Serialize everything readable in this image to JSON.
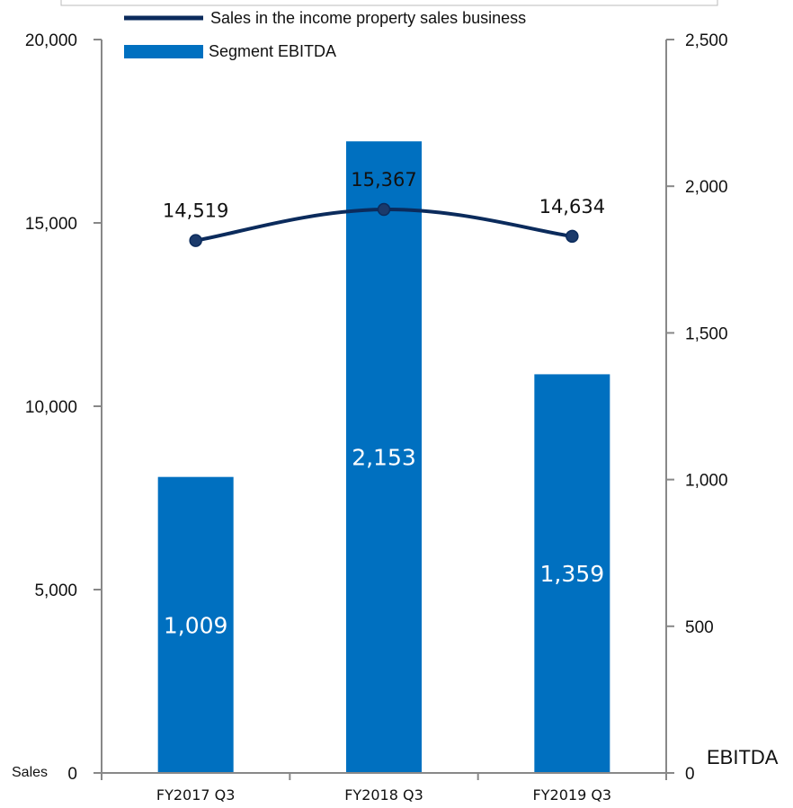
{
  "chart_data": {
    "type": "bar+line",
    "categories": [
      "FY2017 Q3",
      "FY2018 Q3",
      "FY2019 Q3"
    ],
    "series": [
      {
        "name": "Segment EBITDA",
        "type": "bar",
        "axis": "right",
        "values": [
          1009,
          2153,
          1359
        ],
        "labels": [
          "1,009",
          "2,153",
          "1,359"
        ],
        "color": "#0070C0"
      },
      {
        "name": "Sales in the income property sales business",
        "type": "line",
        "axis": "left",
        "values": [
          14519,
          15367,
          14634
        ],
        "labels": [
          "14,519",
          "15,367",
          "14,634"
        ],
        "color": "#0B2B5C"
      }
    ],
    "left_axis": {
      "label": "Sales",
      "range": [
        0,
        20000
      ],
      "ticks": [
        0,
        5000,
        10000,
        15000,
        20000
      ],
      "tick_labels": [
        "0",
        "5,000",
        "10,000",
        "15,000",
        "20,000"
      ]
    },
    "right_axis": {
      "label": "EBITDA",
      "range": [
        0,
        2500
      ],
      "ticks": [
        0,
        500,
        1000,
        1500,
        2000,
        2500
      ],
      "tick_labels": [
        "0",
        "500",
        "1,000",
        "1,500",
        "2,000",
        "2,500"
      ]
    },
    "grid": false,
    "legend_position": "top"
  }
}
